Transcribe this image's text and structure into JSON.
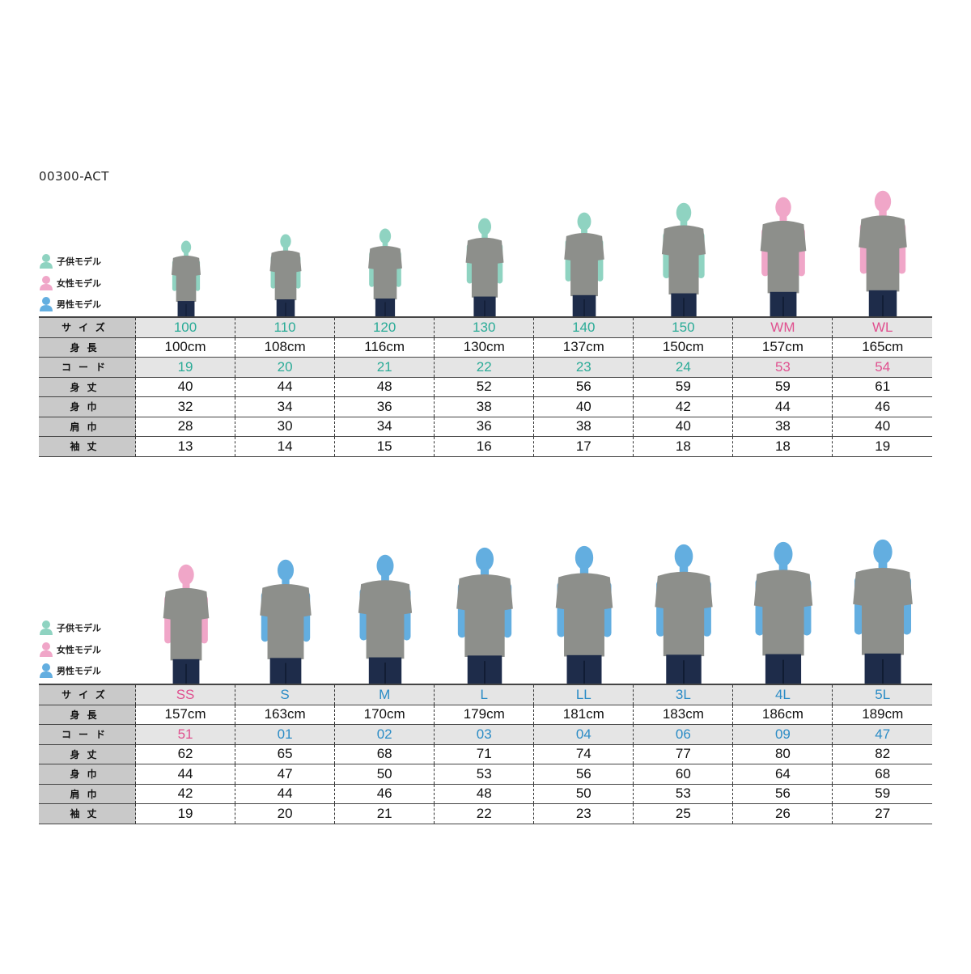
{
  "product_code": "00300-ACT",
  "legend": [
    {
      "label": "子供モデル",
      "type": "kid"
    },
    {
      "label": "女性モデル",
      "type": "female"
    },
    {
      "label": "男性モデル",
      "type": "male"
    }
  ],
  "colors": {
    "kid": "#8fd3c1",
    "female": "#f0a6c8",
    "male": "#63aee0",
    "kid_text": "#2aab97",
    "female_text": "#e0508f",
    "male_text": "#2b8cc6",
    "shirt": "#8d8f8b",
    "jeans": "#1e2c4a"
  },
  "row_labels": [
    "サイズ",
    "身長",
    "コード",
    "身丈",
    "身巾",
    "肩巾",
    "袖丈"
  ],
  "tables": [
    {
      "columns": [
        {
          "size": "100",
          "height": "100cm",
          "code": "19",
          "length": "40",
          "width": "32",
          "shoulder": "28",
          "sleeve": "13",
          "model": "kid",
          "cm": 100
        },
        {
          "size": "110",
          "height": "108cm",
          "code": "20",
          "length": "44",
          "width": "34",
          "shoulder": "30",
          "sleeve": "14",
          "model": "kid",
          "cm": 108
        },
        {
          "size": "120",
          "height": "116cm",
          "code": "21",
          "length": "48",
          "width": "36",
          "shoulder": "34",
          "sleeve": "15",
          "model": "kid",
          "cm": 116
        },
        {
          "size": "130",
          "height": "130cm",
          "code": "22",
          "length": "52",
          "width": "38",
          "shoulder": "36",
          "sleeve": "16",
          "model": "kid",
          "cm": 130
        },
        {
          "size": "140",
          "height": "137cm",
          "code": "23",
          "length": "56",
          "width": "40",
          "shoulder": "38",
          "sleeve": "17",
          "model": "kid",
          "cm": 137
        },
        {
          "size": "150",
          "height": "150cm",
          "code": "24",
          "length": "59",
          "width": "42",
          "shoulder": "40",
          "sleeve": "18",
          "model": "kid",
          "cm": 150
        },
        {
          "size": "WM",
          "height": "157cm",
          "code": "53",
          "length": "59",
          "width": "44",
          "shoulder": "38",
          "sleeve": "18",
          "model": "female",
          "cm": 157
        },
        {
          "size": "WL",
          "height": "165cm",
          "code": "54",
          "length": "61",
          "width": "46",
          "shoulder": "40",
          "sleeve": "19",
          "model": "female",
          "cm": 165
        }
      ]
    },
    {
      "columns": [
        {
          "size": "SS",
          "height": "157cm",
          "code": "51",
          "length": "62",
          "width": "44",
          "shoulder": "42",
          "sleeve": "19",
          "model": "female",
          "cm": 157
        },
        {
          "size": "S",
          "height": "163cm",
          "code": "01",
          "length": "65",
          "width": "47",
          "shoulder": "44",
          "sleeve": "20",
          "model": "male",
          "cm": 163
        },
        {
          "size": "M",
          "height": "170cm",
          "code": "02",
          "length": "68",
          "width": "50",
          "shoulder": "46",
          "sleeve": "21",
          "model": "male",
          "cm": 170
        },
        {
          "size": "L",
          "height": "179cm",
          "code": "03",
          "length": "71",
          "width": "53",
          "shoulder": "48",
          "sleeve": "22",
          "model": "male",
          "cm": 179
        },
        {
          "size": "LL",
          "height": "181cm",
          "code": "04",
          "length": "74",
          "width": "56",
          "shoulder": "50",
          "sleeve": "23",
          "model": "male",
          "cm": 181
        },
        {
          "size": "3L",
          "height": "183cm",
          "code": "06",
          "length": "77",
          "width": "60",
          "shoulder": "53",
          "sleeve": "25",
          "model": "male",
          "cm": 183
        },
        {
          "size": "4L",
          "height": "186cm",
          "code": "09",
          "length": "80",
          "width": "64",
          "shoulder": "56",
          "sleeve": "26",
          "model": "male",
          "cm": 186
        },
        {
          "size": "5L",
          "height": "189cm",
          "code": "47",
          "length": "82",
          "width": "68",
          "shoulder": "59",
          "sleeve": "27",
          "model": "male",
          "cm": 189
        }
      ]
    }
  ]
}
